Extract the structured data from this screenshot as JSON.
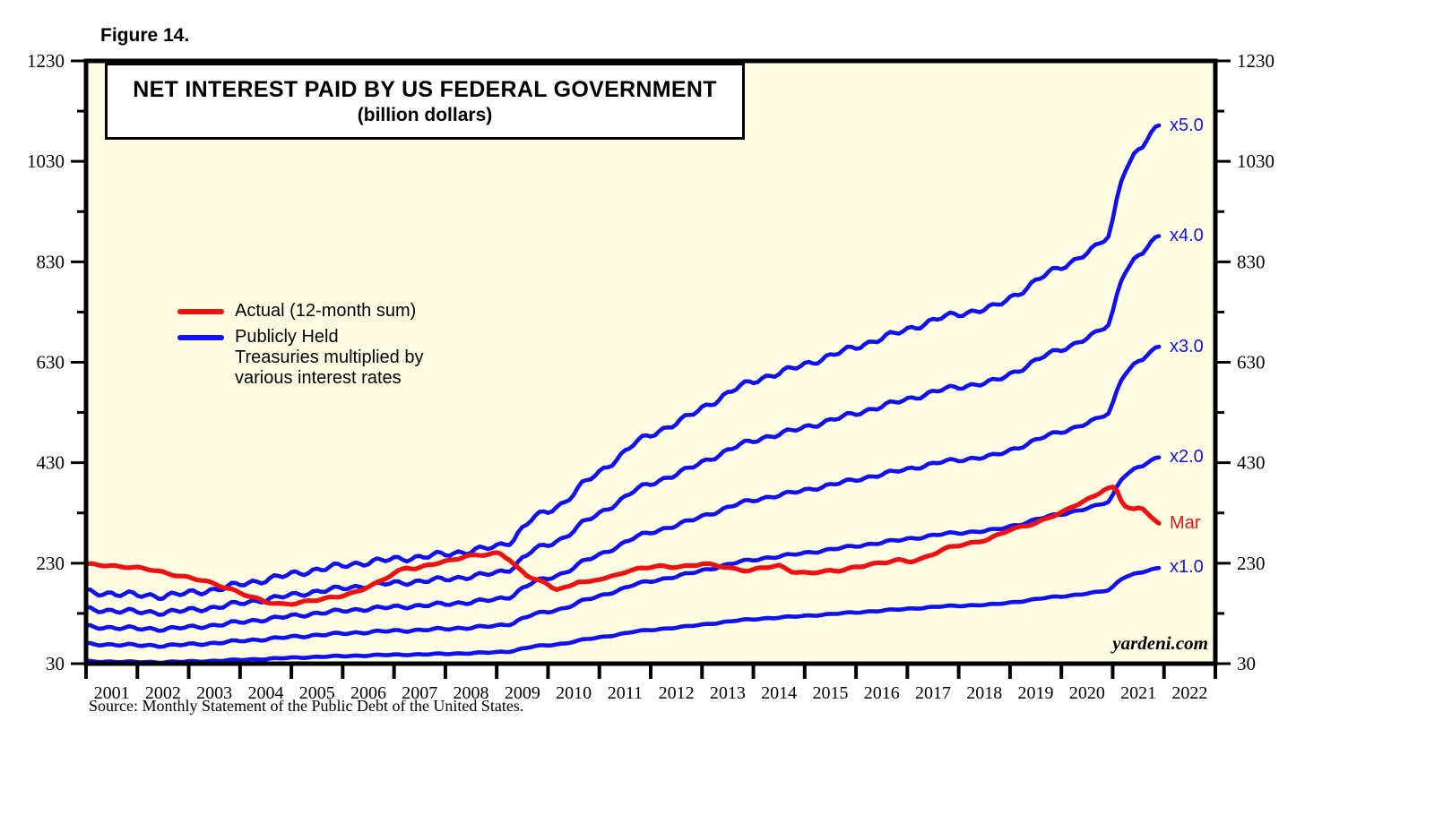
{
  "figure_label": "Figure 14.",
  "title": {
    "line1": "NET INTEREST PAID BY US FEDERAL GOVERNMENT",
    "line2": "(billion dollars)"
  },
  "legend": {
    "actual_label": "Actual (12-month sum)",
    "treasuries_label_lines": [
      "Publicly Held",
      "Treasuries multiplied by",
      "various interest rates"
    ]
  },
  "watermark": "yardeni.com",
  "source_note": "Source: Monthly Statement of the Public Debt of the United States.",
  "colors": {
    "actual": "#EE1111",
    "treasuries": "#1111EE",
    "plot_bg": "#FEFDE3",
    "axis": "#000000",
    "page_bg": "#FFFFFF"
  },
  "chart_data": {
    "type": "line",
    "title": "NET INTEREST PAID BY US FEDERAL GOVERNMENT (billion dollars)",
    "ylim": [
      30,
      1230
    ],
    "y_major_ticks": [
      30,
      230,
      430,
      630,
      830,
      1030,
      1230
    ],
    "y_minor_ticks": [
      130,
      330,
      530,
      730,
      930,
      1130
    ],
    "x_year_labels": [
      "2001",
      "2002",
      "2003",
      "2004",
      "2005",
      "2006",
      "2007",
      "2008",
      "2009",
      "2010",
      "2011",
      "2012",
      "2013",
      "2014",
      "2015",
      "2016",
      "2017",
      "2018",
      "2019",
      "2020",
      "2021",
      "2022"
    ],
    "legend_position": "upper-left-inside",
    "grid": false,
    "series": [
      {
        "name": "Actual (12-month sum)",
        "color_key": "actual",
        "end_label": "Mar",
        "points": [
          [
            2000.3,
            227
          ],
          [
            2000.7,
            226
          ],
          [
            2001.1,
            223
          ],
          [
            2001.6,
            216
          ],
          [
            2002.1,
            206
          ],
          [
            2002.6,
            194
          ],
          [
            2003.1,
            180
          ],
          [
            2003.5,
            163
          ],
          [
            2003.8,
            152
          ],
          [
            2004.1,
            149
          ],
          [
            2004.4,
            151
          ],
          [
            2004.8,
            156
          ],
          [
            2005.2,
            164
          ],
          [
            2005.6,
            174
          ],
          [
            2006.0,
            191
          ],
          [
            2006.35,
            214
          ],
          [
            2006.55,
            222
          ],
          [
            2006.75,
            219
          ],
          [
            2007.0,
            226
          ],
          [
            2007.4,
            236
          ],
          [
            2007.7,
            245
          ],
          [
            2008.1,
            246
          ],
          [
            2008.35,
            250
          ],
          [
            2008.55,
            238
          ],
          [
            2008.7,
            222
          ],
          [
            2008.9,
            205
          ],
          [
            2009.1,
            196
          ],
          [
            2009.45,
            178
          ],
          [
            2009.7,
            183
          ],
          [
            2009.9,
            196
          ],
          [
            2010.1,
            191
          ],
          [
            2010.35,
            199
          ],
          [
            2010.6,
            204
          ],
          [
            2010.85,
            216
          ],
          [
            2011.1,
            220
          ],
          [
            2011.4,
            223
          ],
          [
            2011.7,
            222
          ],
          [
            2012.0,
            225
          ],
          [
            2012.3,
            229
          ],
          [
            2012.6,
            224
          ],
          [
            2012.9,
            219
          ],
          [
            2013.2,
            216
          ],
          [
            2013.5,
            221
          ],
          [
            2013.8,
            224
          ],
          [
            2014.05,
            214
          ],
          [
            2014.35,
            211
          ],
          [
            2014.65,
            213
          ],
          [
            2014.95,
            214
          ],
          [
            2015.25,
            222
          ],
          [
            2015.55,
            228
          ],
          [
            2015.85,
            230
          ],
          [
            2016.1,
            236
          ],
          [
            2016.35,
            234
          ],
          [
            2016.6,
            240
          ],
          [
            2016.9,
            252
          ],
          [
            2017.15,
            262
          ],
          [
            2017.5,
            270
          ],
          [
            2017.9,
            278
          ],
          [
            2018.3,
            296
          ],
          [
            2018.9,
            314
          ],
          [
            2019.35,
            332
          ],
          [
            2019.7,
            353
          ],
          [
            2019.95,
            364
          ],
          [
            2020.15,
            378
          ],
          [
            2020.35,
            380
          ],
          [
            2020.5,
            346
          ],
          [
            2020.7,
            337
          ],
          [
            2020.86,
            341
          ],
          [
            2021.0,
            330
          ],
          [
            2021.1,
            318
          ],
          [
            2021.2,
            308
          ]
        ]
      },
      {
        "name": "Publicly Held Treasuries multiplied by various interest rates",
        "color_key": "treasuries",
        "multipliers": [
          1,
          2,
          3,
          4,
          5
        ],
        "end_labels": [
          "x1.0",
          "x2.0",
          "x3.0",
          "x4.0",
          "x5.0"
        ],
        "base_points": [
          [
            2000.3,
            34.5
          ],
          [
            2000.8,
            34
          ],
          [
            2001.3,
            33.2
          ],
          [
            2001.8,
            33
          ],
          [
            2002.3,
            34
          ],
          [
            2002.8,
            35.5
          ],
          [
            2003.3,
            37.5
          ],
          [
            2003.8,
            39.5
          ],
          [
            2004.3,
            41.5
          ],
          [
            2004.8,
            43.5
          ],
          [
            2005.3,
            45
          ],
          [
            2005.8,
            46.5
          ],
          [
            2006.3,
            47.5
          ],
          [
            2006.8,
            48.5
          ],
          [
            2007.3,
            49.5
          ],
          [
            2007.8,
            51
          ],
          [
            2008.3,
            52.5
          ],
          [
            2008.6,
            55
          ],
          [
            2008.8,
            60
          ],
          [
            2009.0,
            64
          ],
          [
            2009.3,
            66.5
          ],
          [
            2009.6,
            70
          ],
          [
            2010.0,
            78
          ],
          [
            2010.3,
            82
          ],
          [
            2010.6,
            87
          ],
          [
            2011.0,
            94
          ],
          [
            2011.5,
            99
          ],
          [
            2012.0,
            104
          ],
          [
            2012.5,
            110
          ],
          [
            2013.0,
            116
          ],
          [
            2013.5,
            120
          ],
          [
            2014.0,
            123
          ],
          [
            2014.5,
            126.5
          ],
          [
            2015.0,
            130
          ],
          [
            2015.5,
            133.5
          ],
          [
            2016.0,
            137
          ],
          [
            2016.5,
            140.5
          ],
          [
            2017.0,
            144
          ],
          [
            2017.5,
            146
          ],
          [
            2018.0,
            148
          ],
          [
            2018.5,
            154
          ],
          [
            2019.0,
            161
          ],
          [
            2019.5,
            166
          ],
          [
            2020.0,
            172
          ],
          [
            2020.25,
            177
          ],
          [
            2020.35,
            188
          ],
          [
            2020.5,
            202
          ],
          [
            2020.7,
            208
          ],
          [
            2020.9,
            212
          ],
          [
            2021.0,
            216
          ],
          [
            2021.2,
            220
          ]
        ]
      }
    ],
    "axis_span_years": [
      2000.3,
      2022.3
    ],
    "data_end_year": 2021.2
  }
}
